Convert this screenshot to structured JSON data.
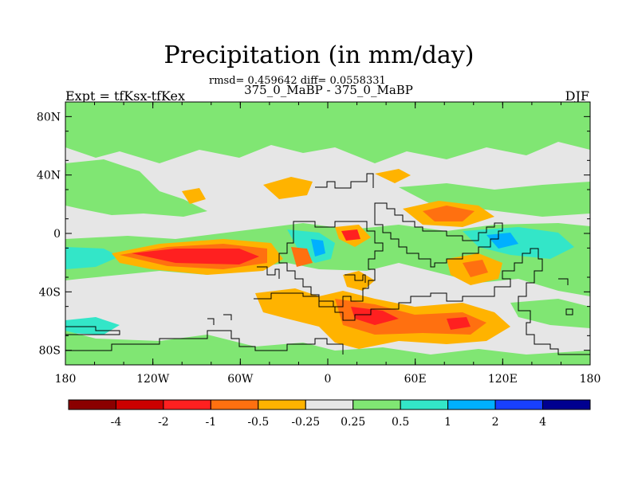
{
  "title": "Precipitation (in mm/day)",
  "stats": "rmsd= 0.459642 diff= 0.0558331",
  "subtitle": "375_0_MaBP - 375_0_MaBP",
  "left_label": "Expt = tfKsx-tfKex",
  "right_label": "DJF",
  "lon_ticks": [
    {
      "label": "180",
      "value": -180
    },
    {
      "label": "120W",
      "value": -120
    },
    {
      "label": "60W",
      "value": -60
    },
    {
      "label": "0",
      "value": 0
    },
    {
      "label": "60E",
      "value": 60
    },
    {
      "label": "120E",
      "value": 120
    },
    {
      "label": "180",
      "value": 180
    }
  ],
  "lat_ticks": [
    {
      "label": "80N",
      "value": 80
    },
    {
      "label": "40N",
      "value": 40
    },
    {
      "label": "0",
      "value": 0
    },
    {
      "label": "40S",
      "value": -40
    },
    {
      "label": "80S",
      "value": -80
    }
  ],
  "lat_range": [
    -90,
    90
  ],
  "lon_range": [
    -180,
    180
  ],
  "colorbar": {
    "colors": [
      "#8b0000",
      "#cc0000",
      "#ff2020",
      "#ff7010",
      "#ffb300",
      "#e6e6e6",
      "#80e673",
      "#33e6c8",
      "#00b0ff",
      "#1840ff",
      "#000090"
    ],
    "labels": [
      "-4",
      "-2",
      "-1",
      "-0.5",
      "-0.25",
      "0.25",
      "0.5",
      "1",
      "2",
      "4"
    ]
  },
  "field_colors": {
    "neutral": "#e6e6e6",
    "green": "#80e673",
    "cyan": "#33e6c8",
    "blue": "#00b0ff",
    "orange": "#ffb300",
    "dorange": "#ff7010",
    "red": "#ff2020"
  }
}
